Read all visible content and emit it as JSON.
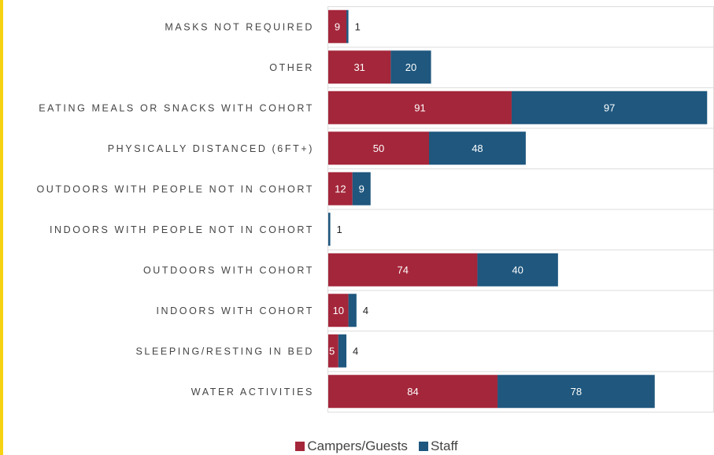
{
  "colors": {
    "campers": "#a4263a",
    "staff": "#1f577e",
    "accent": "#f5d312",
    "grid": "#dddddd"
  },
  "chart_data": {
    "type": "bar",
    "orientation": "horizontal",
    "stacked": true,
    "categories": [
      "MASKS NOT REQUIRED",
      "OTHER",
      "EATING MEALS OR SNACKS WITH COHORT",
      "PHYSICALLY DISTANCED (6FT+)",
      "OUTDOORS WITH PEOPLE NOT IN COHORT",
      "INDOORS WITH PEOPLE NOT IN COHORT",
      "OUTDOORS WITH COHORT",
      "INDOORS WITH COHORT",
      "SLEEPING/RESTING IN BED",
      "WATER ACTIVITIES"
    ],
    "series": [
      {
        "name": "Campers/Guests",
        "values": [
          9,
          31,
          91,
          50,
          12,
          0,
          74,
          10,
          5,
          84
        ]
      },
      {
        "name": "Staff",
        "values": [
          1,
          20,
          97,
          48,
          9,
          1,
          40,
          4,
          4,
          78
        ]
      }
    ],
    "xlim": [
      0,
      200
    ],
    "grid": true,
    "legend": "bottom-center"
  },
  "legend": {
    "campers_label": "Campers/Guests",
    "staff_label": "Staff"
  }
}
